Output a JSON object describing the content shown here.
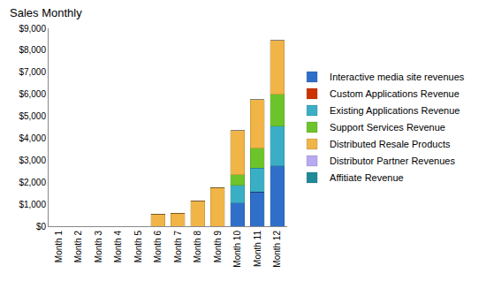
{
  "chart_data": {
    "type": "bar",
    "title": "Sales Monthly",
    "stacked": true,
    "grid": false,
    "legend": "right",
    "categories": [
      "Month 1",
      "Month 2",
      "Month 3",
      "Month 4",
      "Month 5",
      "Month 6",
      "Month 7",
      "Month 8",
      "Month 9",
      "Month 10",
      "Month 11",
      "Month 12"
    ],
    "series": [
      {
        "name": "Interactive media site revenues",
        "color": "#2f6fc9",
        "values": [
          0,
          0,
          0,
          0,
          0,
          0,
          0,
          0,
          0,
          1050,
          1550,
          2750
        ]
      },
      {
        "name": "Custom Applications Revenue",
        "color": "#cc3300",
        "values": [
          0,
          0,
          0,
          0,
          0,
          0,
          0,
          0,
          0,
          0,
          0,
          0
        ]
      },
      {
        "name": "Existing Applications Revenue",
        "color": "#3aaec4",
        "values": [
          0,
          0,
          0,
          0,
          0,
          0,
          0,
          0,
          0,
          800,
          1100,
          1800
        ]
      },
      {
        "name": "Support Services Revenue",
        "color": "#6cc42a",
        "values": [
          0,
          0,
          0,
          0,
          0,
          0,
          0,
          0,
          0,
          500,
          900,
          1450
        ]
      },
      {
        "name": "Distributed Resale Products",
        "color": "#f0b447",
        "values": [
          0,
          0,
          0,
          0,
          0,
          550,
          600,
          1150,
          1750,
          2000,
          2200,
          2450
        ]
      },
      {
        "name": "Distributor Partner Revenues",
        "color": "#b9a9f0",
        "values": [
          0,
          0,
          0,
          0,
          0,
          0,
          0,
          0,
          0,
          0,
          0,
          0
        ]
      },
      {
        "name": "Affitiate Revenue",
        "color": "#1f8a98",
        "values": [
          0,
          0,
          0,
          0,
          0,
          0,
          0,
          0,
          0,
          0,
          0,
          0
        ]
      }
    ],
    "ylim": [
      0,
      9000
    ],
    "yticks": [
      {
        "value": 0,
        "label": "$0"
      },
      {
        "value": 1000,
        "label": "$1,000"
      },
      {
        "value": 2000,
        "label": "$2,000"
      },
      {
        "value": 3000,
        "label": "$3,000"
      },
      {
        "value": 4000,
        "label": "$4,000"
      },
      {
        "value": 5000,
        "label": "$5,000"
      },
      {
        "value": 6000,
        "label": "$6,000"
      },
      {
        "value": 7000,
        "label": "$7,000"
      },
      {
        "value": 8000,
        "label": "$8,000"
      },
      {
        "value": 9000,
        "label": "$9,000"
      }
    ]
  }
}
